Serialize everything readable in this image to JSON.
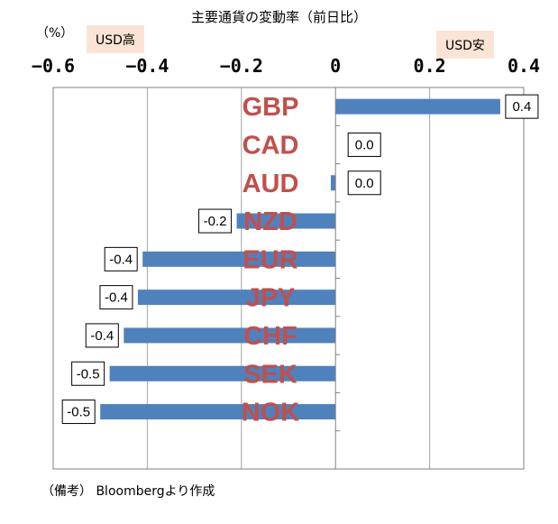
{
  "header": {
    "title": "主要通貨の変動率（前日比）",
    "unit": "（%）",
    "usd_high": "USD高",
    "usd_low": "USD安"
  },
  "footer": {
    "note": "（備考） Bloombergより作成"
  },
  "colors": {
    "bar": "#4f81bd",
    "label": "#c0504d",
    "tag_bg": "#fbe4d5"
  },
  "chart_data": {
    "type": "bar",
    "orientation": "horizontal",
    "categories": [
      "GBP",
      "CAD",
      "AUD",
      "NZD",
      "EUR",
      "JPY",
      "CHF",
      "SEK",
      "NOK"
    ],
    "values": [
      0.35,
      0.0,
      -0.01,
      -0.21,
      -0.41,
      -0.42,
      -0.45,
      -0.48,
      -0.5
    ],
    "data_labels": [
      "0.4",
      "0.0",
      "0.0",
      "-0.2",
      "-0.4",
      "-0.4",
      "-0.4",
      "-0.5",
      "-0.5"
    ],
    "x_ticks": [
      "−0.6",
      "−0.4",
      "−0.2",
      "0",
      "0.2",
      "0.4"
    ],
    "xlim": [
      -0.6,
      0.4
    ],
    "grid": true,
    "xaxis_position": "top"
  }
}
